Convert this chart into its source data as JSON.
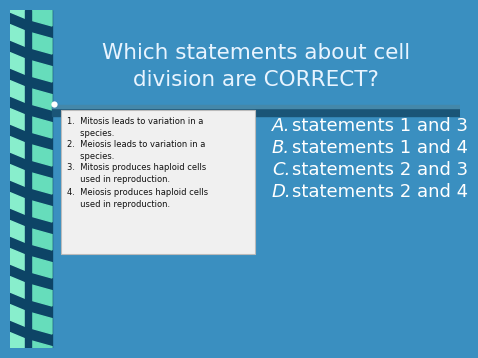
{
  "title_line1": "Which statements about cell",
  "title_line2": "division are CORRECT?",
  "bg_color": "#3a8fc0",
  "title_color": "#e8f4ff",
  "options": [
    [
      "A.",
      "statements 1 and 3"
    ],
    [
      "B.",
      "statements 1 and 4"
    ],
    [
      "C.",
      "statements 2 and 3"
    ],
    [
      "D.",
      "statements 2 and 4"
    ]
  ],
  "option_color": "#ffffff",
  "box_bg": "#f0f0f0",
  "box_border": "#aaaaaa",
  "box_text_color": "#111111",
  "strip_bg": "#1a6688",
  "strip_teal": "#88eecc",
  "strip_dark": "#0d4466",
  "divider_dark": "#1a5577",
  "divider_light": "#5599bb",
  "stmt1": "1.  Mitosis leads to variation in a\n     species.",
  "stmt2": "2.  Meiosis leads to variation in a\n     species.",
  "stmt3": "3.  Mitosis produces haploid cells\n     used in reproduction.",
  "stmt4": "4.  Meiosis produces haploid cells\n     used in reproduction."
}
